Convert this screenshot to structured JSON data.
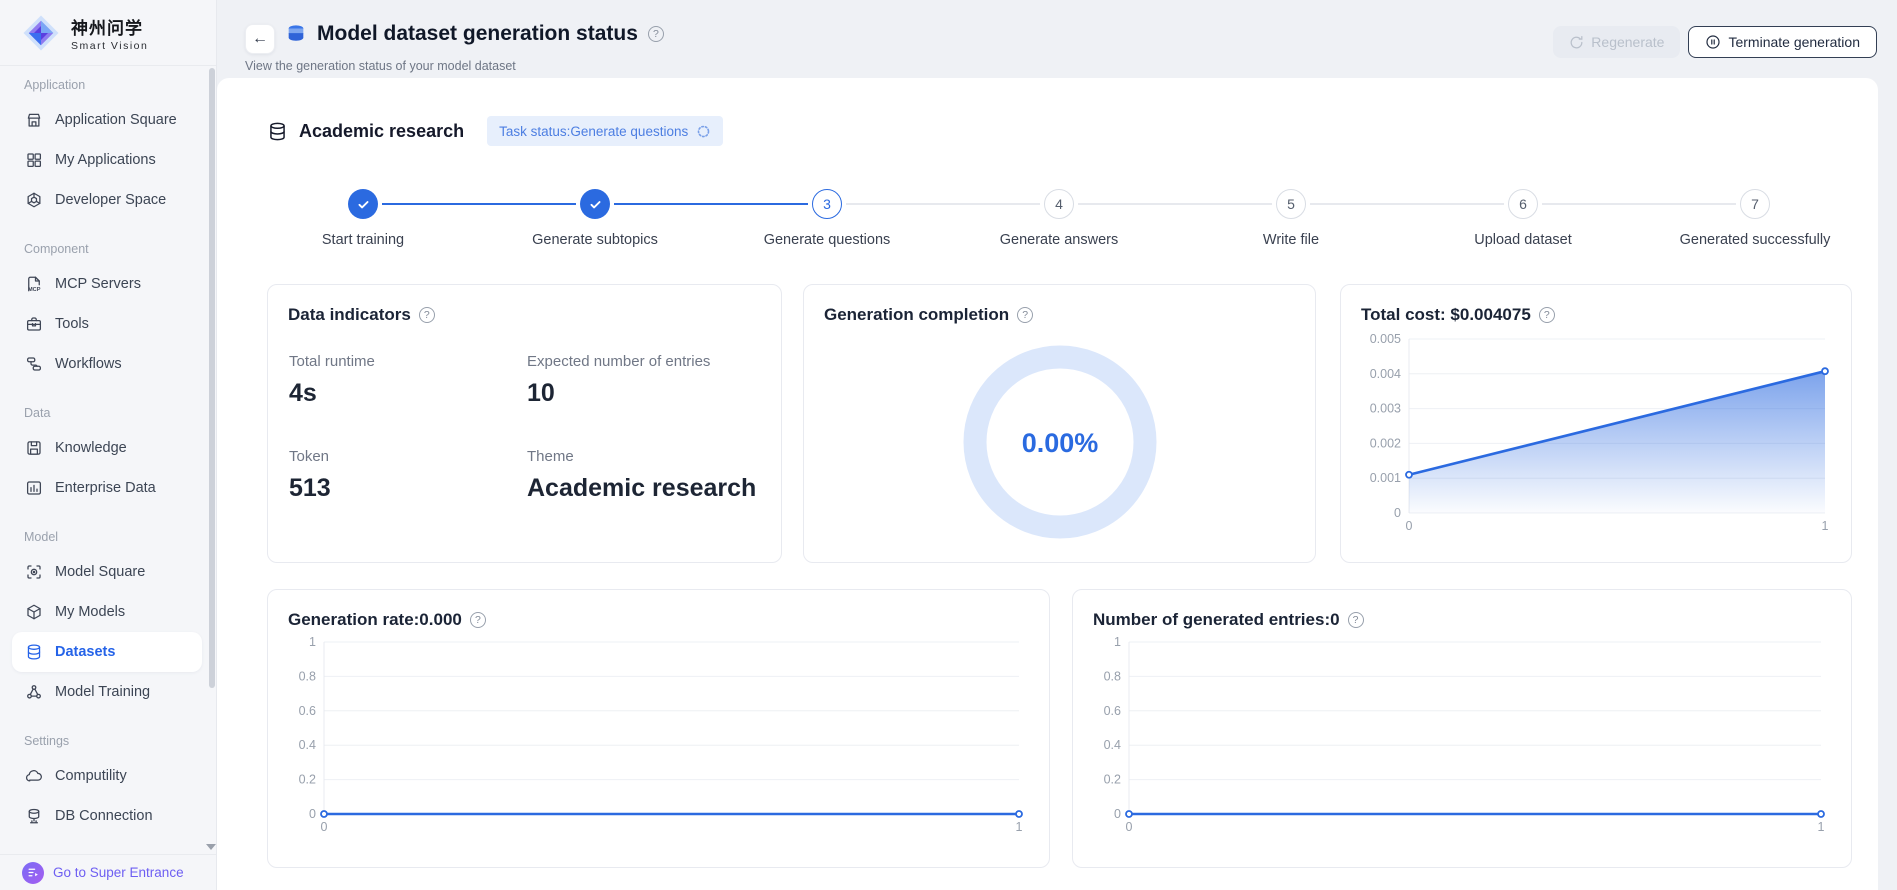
{
  "brand": {
    "name_cn": "神州问学",
    "name_en": "Smart Vision"
  },
  "colors": {
    "accent": "#2b6ae0",
    "accent_text": "#2563e8",
    "badge_bg": "#e7effc",
    "badge_text": "#4c7ee2",
    "donut_ring": "#dbe7fb",
    "grid_line": "#eef0f4",
    "axis_label": "#98a0ac",
    "pending": "#d9dde4"
  },
  "sidebar": {
    "groups": [
      {
        "label": "Application",
        "items": [
          {
            "label": "Application Square",
            "icon": "storefront-icon"
          },
          {
            "label": "My Applications",
            "icon": "grid-icon"
          },
          {
            "label": "Developer Space",
            "icon": "dev-space-icon"
          }
        ]
      },
      {
        "label": "Component",
        "items": [
          {
            "label": "MCP Servers",
            "icon": "mcp-file-icon"
          },
          {
            "label": "Tools",
            "icon": "toolbox-icon"
          },
          {
            "label": "Workflows",
            "icon": "workflow-icon"
          }
        ]
      },
      {
        "label": "Data",
        "items": [
          {
            "label": "Knowledge",
            "icon": "knowledge-icon"
          },
          {
            "label": "Enterprise Data",
            "icon": "bar-chart-icon"
          }
        ]
      },
      {
        "label": "Model",
        "items": [
          {
            "label": "Model Square",
            "icon": "model-square-icon"
          },
          {
            "label": "My Models",
            "icon": "cube-icon"
          },
          {
            "label": "Datasets",
            "icon": "database-icon",
            "active": true
          },
          {
            "label": "Model Training",
            "icon": "molecule-icon"
          }
        ]
      },
      {
        "label": "Settings",
        "items": [
          {
            "label": "Computility",
            "icon": "cloud-icon"
          },
          {
            "label": "DB Connection",
            "icon": "db-connection-icon"
          }
        ]
      }
    ],
    "footer": {
      "label": "Go to Super Entrance",
      "icon": "super-entrance-icon"
    }
  },
  "header": {
    "title": "Model dataset generation status",
    "subtitle": "View the generation status of your model dataset",
    "regenerate_label": "Regenerate",
    "terminate_label": "Terminate generation"
  },
  "task": {
    "name": "Academic research",
    "status_badge": "Task status:Generate questions"
  },
  "stepper": {
    "steps": [
      {
        "label": "Start training",
        "state": "done"
      },
      {
        "label": "Generate subtopics",
        "state": "done"
      },
      {
        "label": "Generate questions",
        "state": "active",
        "number": "3"
      },
      {
        "label": "Generate answers",
        "state": "pending",
        "number": "4"
      },
      {
        "label": "Write file",
        "state": "pending",
        "number": "5"
      },
      {
        "label": "Upload dataset",
        "state": "pending",
        "number": "6"
      },
      {
        "label": "Generated successfully",
        "state": "pending",
        "number": "7"
      }
    ]
  },
  "indicators": {
    "title": "Data indicators",
    "metrics": [
      {
        "label": "Total runtime",
        "value": "4s"
      },
      {
        "label": "Expected number of entries",
        "value": "10"
      },
      {
        "label": "Token",
        "value": "513"
      },
      {
        "label": "Theme",
        "value": "Academic research"
      }
    ]
  },
  "completion": {
    "title": "Generation completion",
    "percent_label": "0.00%",
    "percent_value": 0
  },
  "chart_data": [
    {
      "type": "area",
      "title": "Total cost: $0.004075",
      "x": [
        0,
        1
      ],
      "values": [
        0.0011,
        0.004075
      ],
      "xlabel": "",
      "ylabel": "",
      "ylim": [
        0,
        0.005
      ],
      "yticks": [
        0,
        0.001,
        0.002,
        0.003,
        0.004,
        0.005
      ],
      "xticks": [
        0,
        1
      ],
      "grid": true,
      "legend": "none"
    },
    {
      "type": "line",
      "title": "Generation rate:0.000",
      "x": [
        0,
        1
      ],
      "values": [
        0,
        0
      ],
      "xlabel": "",
      "ylabel": "",
      "ylim": [
        0,
        1
      ],
      "yticks": [
        0,
        0.2,
        0.4,
        0.6,
        0.8,
        1
      ],
      "xticks": [
        0,
        1
      ],
      "grid": true,
      "legend": "none"
    },
    {
      "type": "line",
      "title": "Number of generated entries:0",
      "x": [
        0,
        1
      ],
      "values": [
        0,
        0
      ],
      "xlabel": "",
      "ylabel": "",
      "ylim": [
        0,
        1
      ],
      "yticks": [
        0,
        0.2,
        0.4,
        0.6,
        0.8,
        1
      ],
      "xticks": [
        0,
        1
      ],
      "grid": true,
      "legend": "none"
    }
  ]
}
